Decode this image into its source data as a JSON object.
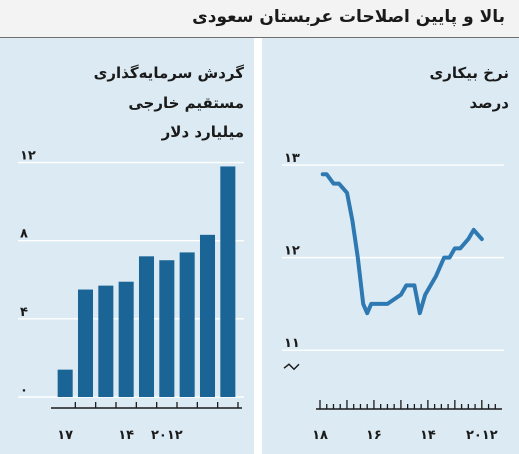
{
  "header": {
    "title": "بالا و پایین اصلاحات عربستان سعودی"
  },
  "colors": {
    "bar": "#1a6496",
    "line": "#2f79b3",
    "panel_bg": "#dcebf3",
    "grid": "#ffffff",
    "axis": "#1a1a1a"
  },
  "chart_data": [
    {
      "type": "bar",
      "title_lines": [
        "گردش سرمایه‌گذاری",
        "مستقیم خارجی",
        "میلیارد دلار"
      ],
      "categories": [
        2009,
        2010,
        2011,
        2012,
        2013,
        2014,
        2015,
        2016,
        2017
      ],
      "values": [
        11.8,
        8.3,
        7.4,
        7.0,
        7.2,
        5.9,
        5.7,
        5.5,
        1.4
      ],
      "ylim": [
        0,
        13
      ],
      "yticks": [
        0,
        4,
        8,
        12
      ],
      "ytick_labels": [
        "۰",
        "۴",
        "۸",
        "۱۲"
      ],
      "xticks": [
        2017,
        2014,
        2012
      ],
      "xtick_labels": [
        "۱۷",
        "۱۴",
        "۲۰۱۲"
      ],
      "grid": true
    },
    {
      "type": "line",
      "title_lines": [
        "نرخ بیکاری",
        "درصد"
      ],
      "xlim": [
        2018,
        2011.4
      ],
      "ylim": [
        10.7,
        13.4
      ],
      "yticks": [
        11,
        12,
        13
      ],
      "ytick_labels": [
        "۱۱",
        "۱۲",
        "۱۳"
      ],
      "xticks": [
        2018,
        2016,
        2014,
        2012
      ],
      "xtick_labels": [
        "۱۸",
        "۱۶",
        "۱۴",
        "۲۰۱۲"
      ],
      "axis_break": true,
      "grid": true,
      "series": [
        {
          "x": [
            2017.9,
            2017.75,
            2017.5,
            2017.3,
            2017.0,
            2016.8,
            2016.6,
            2016.4,
            2016.25,
            2016.1,
            2016.0,
            2015.5,
            2015.0,
            2014.8,
            2014.5,
            2014.3,
            2014.1,
            2013.9,
            2013.7,
            2013.4,
            2013.2,
            2013.0,
            2012.8,
            2012.5,
            2012.3,
            2012.0
          ],
          "y": [
            12.9,
            12.9,
            12.8,
            12.8,
            12.7,
            12.4,
            12.0,
            11.5,
            11.4,
            11.5,
            11.5,
            11.5,
            11.6,
            11.7,
            11.7,
            11.4,
            11.6,
            11.7,
            11.8,
            12.0,
            12.0,
            12.1,
            12.1,
            12.2,
            12.3,
            12.2
          ]
        }
      ]
    }
  ]
}
